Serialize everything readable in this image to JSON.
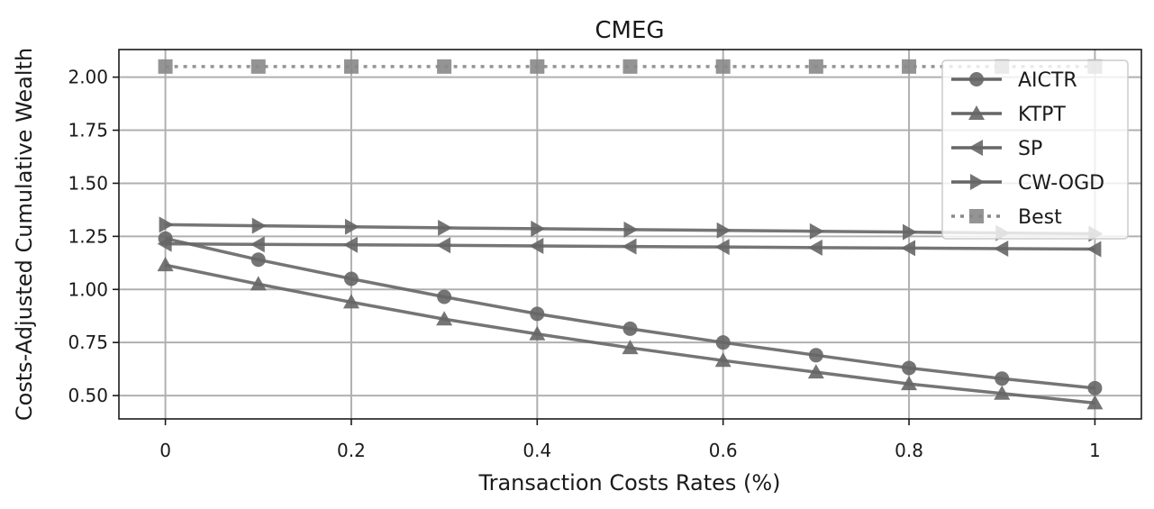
{
  "chart_data": {
    "type": "line",
    "title": "CMEG",
    "xlabel": "Transaction Costs Rates (%)",
    "ylabel": "Costs-Adjusted Cumulative Wealth",
    "x": [
      0,
      0.1,
      0.2,
      0.3,
      0.4,
      0.5,
      0.6,
      0.7,
      0.8,
      0.9,
      1.0
    ],
    "xlim": [
      -0.05,
      1.05
    ],
    "ylim": [
      0.39,
      2.13
    ],
    "xticks": [
      0,
      0.2,
      0.4,
      0.6,
      0.8,
      1.0
    ],
    "xtick_labels": [
      "0",
      "0.2",
      "0.4",
      "0.6",
      "0.8",
      "1"
    ],
    "yticks": [
      0.5,
      0.75,
      1.0,
      1.25,
      1.5,
      1.75,
      2.0
    ],
    "ytick_labels": [
      "0.50",
      "0.75",
      "1.00",
      "1.25",
      "1.50",
      "1.75",
      "2.00"
    ],
    "grid": true,
    "legend_position": "top-right",
    "series": [
      {
        "name": "AICTR",
        "marker": "circle",
        "linestyle": "solid",
        "color": "#666666",
        "values": [
          1.24,
          1.14,
          1.05,
          0.965,
          0.885,
          0.815,
          0.75,
          0.69,
          0.63,
          0.58,
          0.535
        ]
      },
      {
        "name": "KTPT",
        "marker": "triangle-up",
        "linestyle": "solid",
        "color": "#666666",
        "values": [
          1.115,
          1.025,
          0.94,
          0.86,
          0.79,
          0.725,
          0.665,
          0.61,
          0.555,
          0.51,
          0.465
        ]
      },
      {
        "name": "SP",
        "marker": "triangle-left",
        "linestyle": "solid",
        "color": "#666666",
        "values": [
          1.215,
          1.212,
          1.21,
          1.208,
          1.205,
          1.202,
          1.2,
          1.197,
          1.195,
          1.192,
          1.19
        ]
      },
      {
        "name": "CW-OGD",
        "marker": "triangle-right",
        "linestyle": "solid",
        "color": "#666666",
        "values": [
          1.305,
          1.3,
          1.295,
          1.29,
          1.286,
          1.282,
          1.278,
          1.274,
          1.27,
          1.266,
          1.262
        ]
      },
      {
        "name": "Best",
        "marker": "square",
        "linestyle": "dotted",
        "color": "#888888",
        "values": [
          2.05,
          2.05,
          2.05,
          2.05,
          2.05,
          2.05,
          2.05,
          2.05,
          2.05,
          2.05,
          2.05
        ]
      }
    ]
  }
}
